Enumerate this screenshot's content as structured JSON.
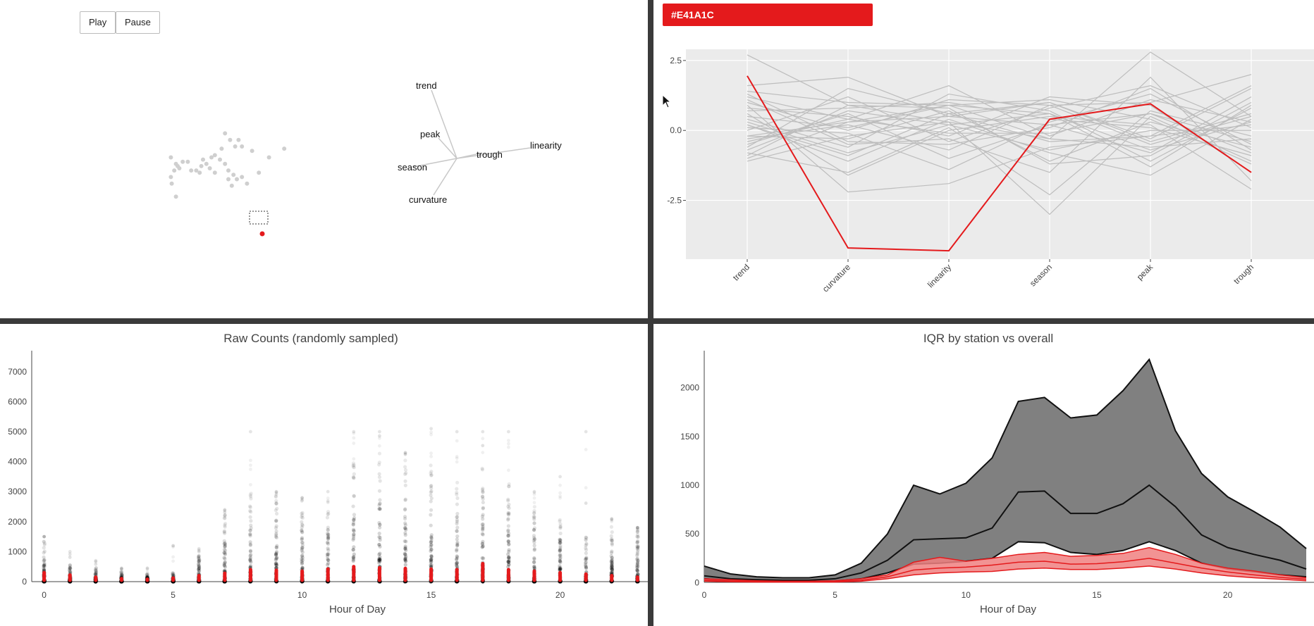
{
  "controls": {
    "play_label": "Play",
    "pause_label": "Pause"
  },
  "color_tag": {
    "label": "#E41A1C",
    "color": "#E41A1C"
  },
  "chart_data": [
    {
      "type": "scatter",
      "points": [
        {
          "x": 0.6,
          "y": 1.5
        },
        {
          "x": 0.6,
          "y": 0.6
        },
        {
          "x": 0.65,
          "y": 0.3
        },
        {
          "x": 0.9,
          "y": 1.2
        },
        {
          "x": 0.8,
          "y": 0.9
        },
        {
          "x": 1.0,
          "y": 1.1
        },
        {
          "x": 1.1,
          "y": 1.0
        },
        {
          "x": 1.3,
          "y": 1.3
        },
        {
          "x": 1.6,
          "y": 1.3
        },
        {
          "x": 1.8,
          "y": 0.9
        },
        {
          "x": 2.1,
          "y": 0.9
        },
        {
          "x": 2.3,
          "y": 0.8
        },
        {
          "x": 2.4,
          "y": 1.1
        },
        {
          "x": 2.5,
          "y": 1.4
        },
        {
          "x": 2.7,
          "y": 1.2
        },
        {
          "x": 2.9,
          "y": 1.0
        },
        {
          "x": 3.0,
          "y": 1.5
        },
        {
          "x": 3.2,
          "y": 1.6
        },
        {
          "x": 3.5,
          "y": 1.4
        },
        {
          "x": 3.8,
          "y": 1.2
        },
        {
          "x": 4.0,
          "y": 0.9
        },
        {
          "x": 4.3,
          "y": 0.7
        },
        {
          "x": 4.5,
          "y": 0.5
        },
        {
          "x": 4.8,
          "y": 0.6
        },
        {
          "x": 5.1,
          "y": 0.3
        },
        {
          "x": 3.6,
          "y": 1.9
        },
        {
          "x": 3.8,
          "y": 2.6
        },
        {
          "x": 4.1,
          "y": 2.3
        },
        {
          "x": 4.4,
          "y": 2.0
        },
        {
          "x": 4.6,
          "y": 2.3
        },
        {
          "x": 4.8,
          "y": 2.0
        },
        {
          "x": 5.4,
          "y": 1.8
        },
        {
          "x": 5.8,
          "y": 0.8
        },
        {
          "x": 4.2,
          "y": 0.2
        },
        {
          "x": 0.9,
          "y": -0.3
        },
        {
          "x": 7.3,
          "y": 1.9
        },
        {
          "x": 4.0,
          "y": 0.5
        },
        {
          "x": 3.2,
          "y": 0.8
        },
        {
          "x": 6.4,
          "y": 1.5
        }
      ],
      "highlighted": {
        "x": 6.0,
        "y": -2.0
      },
      "biplot_labels": [
        "trend",
        "peak",
        "season",
        "trough",
        "linearity",
        "curvature"
      ]
    },
    {
      "type": "line",
      "axes": [
        "trend",
        "curvature",
        "linearity",
        "season",
        "peak",
        "trough"
      ],
      "ylim": [
        -4.6,
        2.9
      ],
      "yticks": [
        "2.5",
        "0.0",
        "-2.5"
      ],
      "ytick_values": [
        2.5,
        0.0,
        -2.5
      ],
      "highlighted": [
        1.95,
        -4.2,
        -4.3,
        0.4,
        0.95,
        -1.5
      ],
      "background_series": [
        [
          2.7,
          0.9,
          0.3,
          -0.3,
          2.8,
          0.5
        ],
        [
          1.6,
          1.9,
          0.5,
          0.2,
          0.6,
          -0.8
        ],
        [
          1.2,
          0.4,
          1.6,
          -0.2,
          1.1,
          0.3
        ],
        [
          0.9,
          -2.2,
          -1.9,
          -0.6,
          -0.2,
          1.6
        ],
        [
          0.5,
          0.1,
          0.9,
          1.1,
          0.4,
          -1.2
        ],
        [
          0.3,
          -0.8,
          0.2,
          0.6,
          -1.3,
          0.9
        ],
        [
          0.0,
          1.2,
          -0.4,
          0.8,
          1.6,
          0.1
        ],
        [
          -0.2,
          -0.3,
          0.7,
          -1.1,
          0.3,
          -0.6
        ],
        [
          -0.5,
          0.6,
          -1.0,
          0.2,
          -0.8,
          1.2
        ],
        [
          -0.8,
          -1.5,
          0.1,
          -2.3,
          0.7,
          -0.2
        ],
        [
          -1.0,
          0.3,
          0.5,
          1.0,
          -0.4,
          0.6
        ],
        [
          1.1,
          -0.5,
          -0.3,
          -1.5,
          1.9,
          -1.8
        ],
        [
          0.7,
          0.8,
          1.0,
          0.4,
          0.1,
          -0.9
        ],
        [
          0.2,
          -1.1,
          0.4,
          -0.8,
          -1.6,
          0.4
        ],
        [
          -0.3,
          0.2,
          -0.7,
          0.9,
          1.0,
          2.0
        ],
        [
          1.4,
          1.0,
          0.9,
          -0.3,
          -0.6,
          -0.3
        ],
        [
          -1.1,
          -0.2,
          0.3,
          -3.0,
          0.5,
          -1.1
        ],
        [
          0.4,
          -0.6,
          1.3,
          0.7,
          -1.1,
          0.8
        ],
        [
          0.8,
          0.5,
          -0.2,
          1.2,
          0.9,
          -1.5
        ],
        [
          -0.6,
          1.5,
          0.6,
          -0.4,
          -0.2,
          0.2
        ],
        [
          0.1,
          -0.1,
          -1.4,
          0.3,
          1.3,
          -0.5
        ],
        [
          -0.9,
          0.9,
          0.8,
          -1.2,
          -0.9,
          1.0
        ],
        [
          0.6,
          -1.6,
          0.0,
          0.5,
          0.2,
          -2.1
        ],
        [
          1.0,
          0.0,
          1.1,
          0.9,
          -0.5,
          0.5
        ],
        [
          -0.4,
          0.4,
          -0.1,
          -0.1,
          0.6,
          -0.4
        ],
        [
          0.2,
          -0.9,
          0.6,
          1.0,
          -0.3,
          1.5
        ],
        [
          -0.7,
          0.7,
          0.2,
          -0.7,
          0.0,
          0.0
        ],
        [
          1.3,
          -0.4,
          -0.5,
          0.1,
          1.5,
          -0.7
        ],
        [
          -0.2,
          0.3,
          0.9,
          0.6,
          -0.7,
          0.3
        ]
      ]
    },
    {
      "type": "scatter",
      "title": "Raw Counts (randomly sampled)",
      "xlabel": "Hour of Day",
      "xlim": [
        -0.4,
        23.4
      ],
      "ylim": [
        0,
        7700
      ],
      "xticks": [
        "0",
        "5",
        "10",
        "15",
        "20"
      ],
      "xtick_values": [
        0,
        5,
        10,
        15,
        20
      ],
      "yticks": [
        "0",
        "1000",
        "2000",
        "3000",
        "4000",
        "5000",
        "6000",
        "7000"
      ],
      "ytick_values": [
        0,
        1000,
        2000,
        3000,
        4000,
        5000,
        6000,
        7000
      ],
      "hours": [
        0,
        1,
        2,
        3,
        4,
        5,
        6,
        7,
        8,
        9,
        10,
        11,
        12,
        13,
        14,
        15,
        16,
        17,
        18,
        19,
        20,
        21,
        22,
        23
      ],
      "dense_max": [
        1500,
        600,
        500,
        350,
        250,
        300,
        900,
        2300,
        3000,
        2900,
        2700,
        2600,
        4000,
        4300,
        4200,
        4100,
        3400,
        4100,
        3400,
        2500,
        2100,
        1500,
        2000,
        1800
      ],
      "outlier_max": [
        1500,
        1000,
        700,
        450,
        450,
        1200,
        1100,
        2400,
        5000,
        3000,
        2800,
        3000,
        5000,
        5000,
        4300,
        5100,
        5000,
        5000,
        5000,
        3000,
        3500,
        5000,
        2100,
        1800
      ],
      "highlight_max": [
        300,
        220,
        150,
        100,
        80,
        120,
        200,
        280,
        400,
        380,
        350,
        420,
        500,
        460,
        440,
        420,
        400,
        600,
        400,
        350,
        300,
        250,
        200,
        150
      ]
    },
    {
      "type": "area",
      "title": "IQR by station vs overall",
      "xlabel": "Hour of Day",
      "xlim": [
        0,
        23
      ],
      "ylim": [
        -40,
        2380
      ],
      "xticks": [
        "0",
        "5",
        "10",
        "15",
        "20"
      ],
      "xtick_values": [
        0,
        5,
        10,
        15,
        20
      ],
      "yticks": [
        "0",
        "500",
        "1000",
        "1500",
        "2000"
      ],
      "ytick_values": [
        0,
        500,
        1000,
        1500,
        2000
      ],
      "x": [
        0,
        1,
        2,
        3,
        4,
        5,
        6,
        7,
        8,
        9,
        10,
        11,
        12,
        13,
        14,
        15,
        16,
        17,
        18,
        19,
        20,
        21,
        22,
        23
      ],
      "overall_q3": [
        170,
        90,
        60,
        50,
        50,
        80,
        200,
        500,
        1000,
        910,
        1020,
        1280,
        1860,
        1900,
        1690,
        1720,
        1970,
        2290,
        1560,
        1120,
        880,
        730,
        570,
        350
      ],
      "overall_median": [
        70,
        40,
        30,
        25,
        25,
        40,
        100,
        230,
        440,
        450,
        460,
        560,
        930,
        940,
        710,
        710,
        810,
        1000,
        780,
        490,
        360,
        290,
        230,
        140
      ],
      "overall_q1": [
        40,
        20,
        10,
        8,
        8,
        15,
        40,
        100,
        190,
        200,
        220,
        250,
        420,
        410,
        310,
        290,
        330,
        420,
        330,
        200,
        140,
        110,
        80,
        60
      ],
      "station_q3": [
        40,
        30,
        20,
        15,
        15,
        20,
        40,
        80,
        210,
        260,
        220,
        250,
        290,
        310,
        270,
        280,
        300,
        360,
        290,
        200,
        150,
        120,
        80,
        50
      ],
      "station_median": [
        25,
        18,
        12,
        10,
        10,
        12,
        25,
        60,
        130,
        150,
        160,
        180,
        210,
        220,
        190,
        195,
        215,
        250,
        200,
        150,
        110,
        80,
        55,
        35
      ],
      "station_q1": [
        15,
        10,
        6,
        5,
        5,
        6,
        15,
        40,
        80,
        100,
        110,
        115,
        140,
        150,
        135,
        135,
        150,
        170,
        140,
        100,
        70,
        50,
        35,
        20
      ]
    }
  ]
}
